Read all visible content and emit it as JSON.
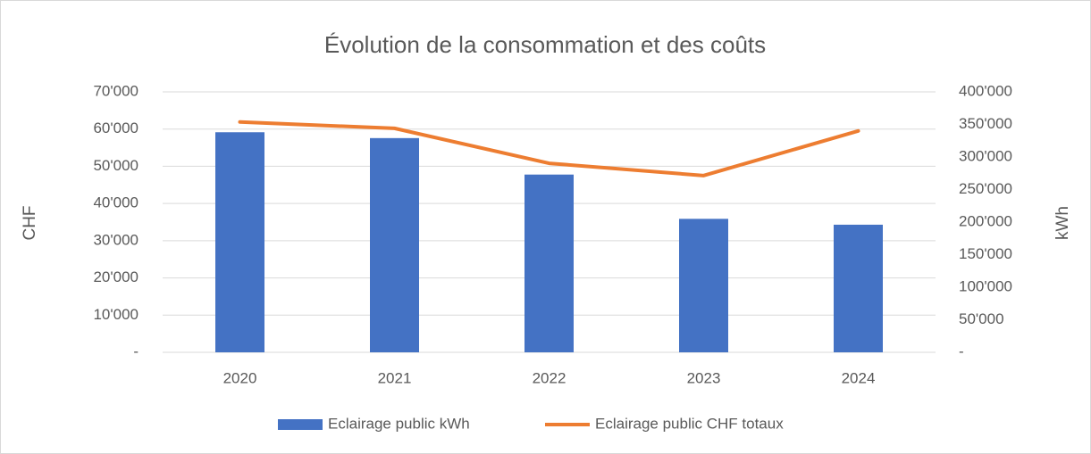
{
  "chart_data": {
    "type": "bar+line",
    "title": "Évolution de la consommation et des coûts",
    "y_label": "CHF",
    "y2_label": "kWh",
    "categories": [
      "2020",
      "2021",
      "2022",
      "2023",
      "2024"
    ],
    "series": [
      {
        "name": "Eclairage public kWh",
        "type": "bar",
        "axis": "y2",
        "color": "#4472c4",
        "values": [
          338000,
          329000,
          273000,
          205000,
          196000
        ]
      },
      {
        "name": "Eclairage public CHF totaux",
        "type": "line",
        "axis": "y",
        "color": "#ed7d31",
        "values": [
          61900,
          60200,
          50800,
          47500,
          59500
        ]
      }
    ],
    "ylim": [
      0,
      70000
    ],
    "yticks": [
      {
        "value": 0,
        "label": "-"
      },
      {
        "value": 10000,
        "label": "10'000"
      },
      {
        "value": 20000,
        "label": "20'000"
      },
      {
        "value": 30000,
        "label": "30'000"
      },
      {
        "value": 40000,
        "label": "40'000"
      },
      {
        "value": 50000,
        "label": "50'000"
      },
      {
        "value": 60000,
        "label": "60'000"
      },
      {
        "value": 70000,
        "label": "70'000"
      }
    ],
    "y2lim": [
      0,
      400000
    ],
    "y2ticks": [
      {
        "value": 0,
        "label": "-"
      },
      {
        "value": 50000,
        "label": "50'000"
      },
      {
        "value": 100000,
        "label": "100'000"
      },
      {
        "value": 150000,
        "label": "150'000"
      },
      {
        "value": 200000,
        "label": "200'000"
      },
      {
        "value": 250000,
        "label": "250'000"
      },
      {
        "value": 300000,
        "label": "300'000"
      },
      {
        "value": 350000,
        "label": "350'000"
      },
      {
        "value": 400000,
        "label": "400'000"
      }
    ],
    "grid": true,
    "legend": "bottom"
  }
}
